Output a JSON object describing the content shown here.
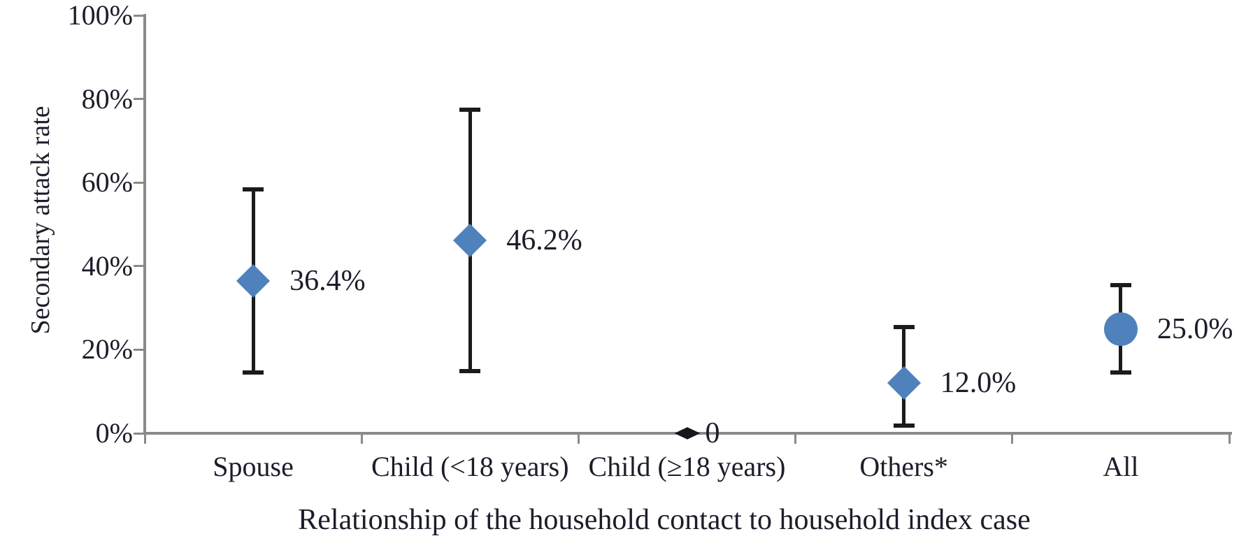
{
  "chart_data": {
    "type": "scatter",
    "subtype": "point-estimates-with-error-bars",
    "title": "",
    "xlabel": "Relationship of the household contact to household index case",
    "ylabel": "Secondary attack rate",
    "ylim": [
      0,
      100
    ],
    "grid": false,
    "legend": null,
    "y_ticks": [
      {
        "label": "100%",
        "value": 100
      },
      {
        "label": "80%",
        "value": 80
      },
      {
        "label": "60%",
        "value": 60
      },
      {
        "label": "40%",
        "value": 40
      },
      {
        "label": "20%",
        "value": 20
      },
      {
        "label": "0%",
        "value": 0
      }
    ],
    "categories": [
      "Spouse",
      "Child (<18 years)",
      "Child (≥18 years)",
      "Others*",
      "All"
    ],
    "points": [
      {
        "category": "Spouse",
        "value": 36.4,
        "label": "36.4%",
        "ci_low": 14.5,
        "ci_high": 58.3,
        "marker": "diamond",
        "color": "#4f81bd"
      },
      {
        "category": "Child (<18 years)",
        "value": 46.2,
        "label": "46.2%",
        "ci_low": 14.8,
        "ci_high": 77.5,
        "marker": "diamond",
        "color": "#4f81bd"
      },
      {
        "category": "Child (≥18 years)",
        "value": 0,
        "label": "0",
        "ci_low": null,
        "ci_high": null,
        "marker": "diamond-small",
        "color": "#16161d"
      },
      {
        "category": "Others*",
        "value": 12.0,
        "label": "12.0%",
        "ci_low": 1.8,
        "ci_high": 25.5,
        "marker": "diamond",
        "color": "#4f81bd"
      },
      {
        "category": "All",
        "value": 25.0,
        "label": "25.0%",
        "ci_low": 14.5,
        "ci_high": 35.5,
        "marker": "circle",
        "color": "#4f81bd"
      }
    ],
    "colors": {
      "marker_blue": "#4f81bd",
      "axis_gray": "#8a8a8a",
      "error_bar_black": "#1b1b1b",
      "text": "#1c1c2b",
      "background": "#ffffff"
    }
  }
}
